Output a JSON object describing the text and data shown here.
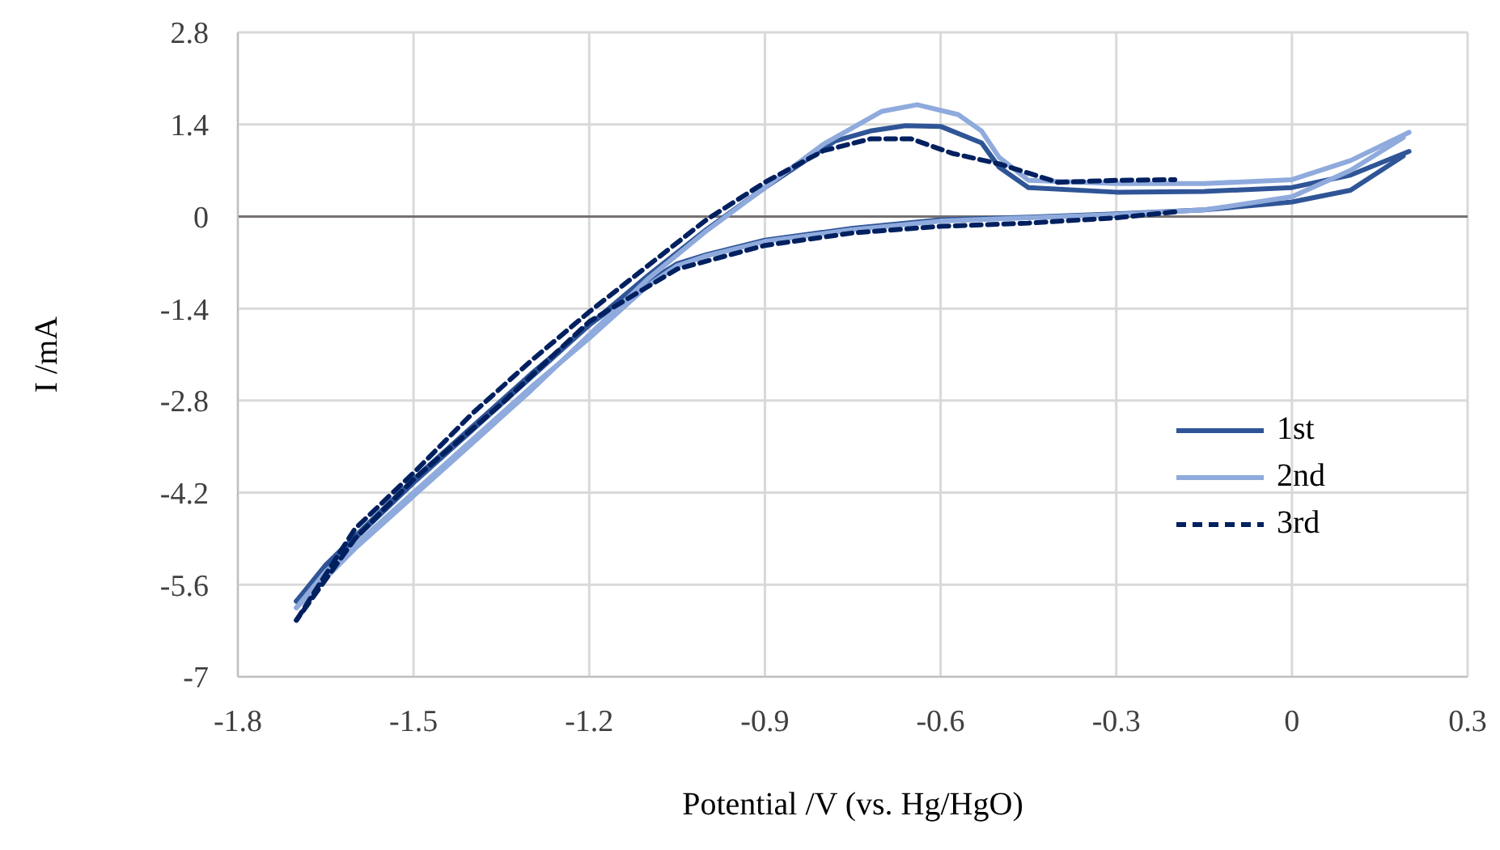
{
  "chart_data": {
    "type": "line",
    "xlabel": "Potential /V (vs. Hg/HgO)",
    "ylabel": "I /mA",
    "xlim": [
      -1.8,
      0.3
    ],
    "xticks": [
      -1.8,
      -1.5,
      -1.2,
      -0.9,
      -0.6,
      -0.3,
      0,
      0.3
    ],
    "ylim": [
      -7,
      2.8
    ],
    "yticks": [
      -7,
      -5.6,
      -4.2,
      -2.8,
      -1.4,
      0,
      1.4,
      2.8
    ],
    "grid": true,
    "legend": "right",
    "marker": "none",
    "ref_lines": [
      {
        "axis": "y",
        "value": 0,
        "color": "#767171"
      }
    ],
    "series": [
      {
        "name": "1st",
        "color": "#2f5597",
        "line_style": "solid",
        "x": [
          0.2,
          0.1,
          0,
          -0.15,
          -0.3,
          -0.45,
          -0.5,
          -0.53,
          -0.6,
          -0.66,
          -0.72,
          -0.78,
          -0.9,
          -1.0,
          -1.1,
          -1.2,
          -1.3,
          -1.4,
          -1.5,
          -1.6,
          -1.7
        ],
        "values": [
          0.99,
          0.63,
          0.44,
          0.38,
          0.37,
          0.44,
          0.75,
          1.12,
          1.37,
          1.38,
          1.3,
          1.15,
          0.44,
          -0.2,
          -0.9,
          -1.65,
          -2.45,
          -3.25,
          -4.05,
          -4.9,
          -5.85
        ]
      },
      {
        "color": "#2f5597",
        "line_style": "solid",
        "x": [
          -1.7,
          -1.65,
          -1.5,
          -1.4,
          -1.3,
          -1.2,
          -1.1,
          -1.05,
          -1.0,
          -0.9,
          -0.75,
          -0.6,
          -0.45,
          -0.3,
          -0.15,
          0,
          0.1,
          0.19
        ],
        "values": [
          -5.85,
          -5.3,
          -4.0,
          -3.2,
          -2.4,
          -1.65,
          -1.0,
          -0.72,
          -0.58,
          -0.36,
          -0.18,
          -0.05,
          -0.01,
          0.04,
          0.1,
          0.22,
          0.4,
          0.92
        ]
      },
      {
        "name": "2nd",
        "color": "#8faadc",
        "line_style": "solid",
        "x": [
          0.2,
          0.1,
          0,
          -0.15,
          -0.3,
          -0.45,
          -0.5,
          -0.53,
          -0.57,
          -0.64,
          -0.7,
          -0.8,
          -0.9,
          -1.0,
          -1.1,
          -1.2,
          -1.3,
          -1.4,
          -1.5,
          -1.6,
          -1.7
        ],
        "values": [
          1.28,
          0.85,
          0.56,
          0.5,
          0.5,
          0.55,
          0.9,
          1.3,
          1.55,
          1.7,
          1.6,
          1.1,
          0.44,
          -0.22,
          -0.95,
          -1.8,
          -2.65,
          -3.45,
          -4.25,
          -5.05,
          -5.95
        ]
      },
      {
        "color": "#8faadc",
        "line_style": "solid",
        "x": [
          -1.7,
          -1.65,
          -1.5,
          -1.4,
          -1.3,
          -1.2,
          -1.1,
          -1.05,
          -1.0,
          -0.9,
          -0.75,
          -0.6,
          -0.45,
          -0.3,
          -0.15,
          0,
          0.1,
          0.19
        ],
        "values": [
          -5.95,
          -5.4,
          -4.2,
          -3.4,
          -2.6,
          -1.85,
          -1.05,
          -0.75,
          -0.6,
          -0.38,
          -0.2,
          -0.07,
          -0.02,
          0.03,
          0.1,
          0.3,
          0.7,
          1.2
        ]
      },
      {
        "name": "3rd",
        "color": "#002060",
        "line_style": "dashed",
        "x": [
          -0.2,
          -0.3,
          -0.45,
          -0.6,
          -0.75,
          -0.9,
          -1.05,
          -1.2,
          -1.35,
          -1.5,
          -1.6,
          -1.7
        ],
        "values": [
          0.07,
          -0.02,
          -0.1,
          -0.15,
          -0.25,
          -0.44,
          -0.8,
          -1.6,
          -2.85,
          -4.0,
          -4.9,
          -6.14
        ]
      },
      {
        "color": "#002060",
        "line_style": "dashed",
        "x": [
          -1.7,
          -1.6,
          -1.5,
          -1.4,
          -1.3,
          -1.2,
          -1.1,
          -1.0,
          -0.9,
          -0.8,
          -0.72,
          -0.65,
          -0.58,
          -0.5,
          -0.4,
          -0.3,
          -0.2
        ],
        "values": [
          -6.14,
          -4.75,
          -3.9,
          -3.0,
          -2.2,
          -1.45,
          -0.75,
          -0.05,
          0.52,
          1.0,
          1.18,
          1.18,
          0.96,
          0.8,
          0.52,
          0.55,
          0.56
        ]
      }
    ]
  }
}
